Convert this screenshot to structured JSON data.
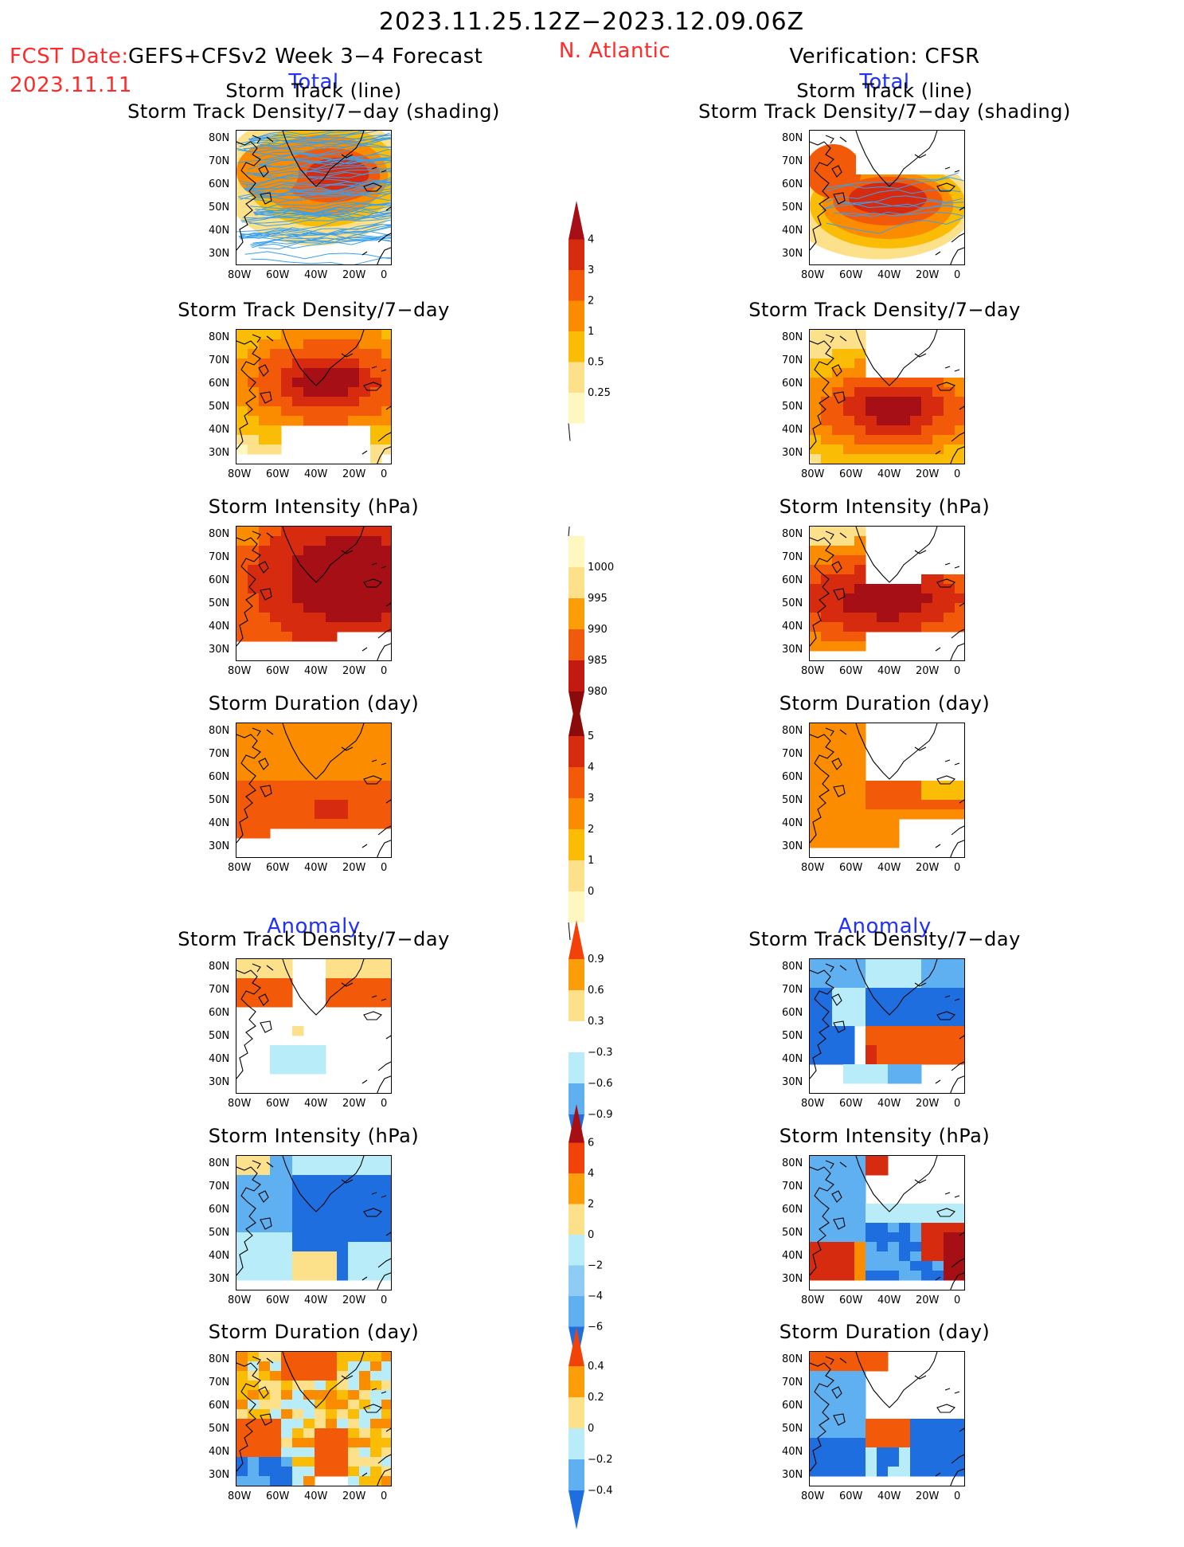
{
  "header": {
    "period": "2023.11.25.12Z−2023.12.09.06Z",
    "fcst_label": "FCST Date:",
    "fcst_date": "2023.11.11",
    "forecast_name": "GEFS+CFSv2 Week 3−4 Forecast",
    "region": "N. Atlantic",
    "verification": "Verification: CFSR",
    "total_left": "Total",
    "total_right": "Total",
    "anomaly_left": "Anomaly",
    "anomaly_right": "Anomaly"
  },
  "panel_titles": {
    "track_line": "Storm Track (line)",
    "track_shading": "Storm Track Density/7−day (shading)",
    "density": "Storm Track Density/7−day",
    "intensity": "Storm Intensity (hPa)",
    "duration": "Storm Duration (day)"
  },
  "axes": {
    "lat_ticks": [
      "80N",
      "70N",
      "60N",
      "50N",
      "40N",
      "30N"
    ],
    "lon_ticks": [
      "80W",
      "60W",
      "40W",
      "20W",
      "0"
    ]
  },
  "colorbars": {
    "density": {
      "labels": [
        "4",
        "3",
        "2",
        "1",
        "0.5",
        "0.25"
      ],
      "colors": [
        "#a50f15",
        "#d62b0f",
        "#f25a0a",
        "#fb8c00",
        "#fbbc05",
        "#fde08a",
        "#fff7c0"
      ]
    },
    "intensity": {
      "labels": [
        "1000",
        "995",
        "990",
        "985",
        "980"
      ],
      "colors": [
        "#fff7c0",
        "#fde08a",
        "#fb9e0a",
        "#f05a0c",
        "#c21a10",
        "#8b0a0a"
      ]
    },
    "duration": {
      "labels": [
        "5",
        "4",
        "3",
        "2",
        "1",
        "0"
      ],
      "colors": [
        "#8b0a0a",
        "#d62b0f",
        "#f25a0a",
        "#fb8c00",
        "#fbbc05",
        "#fde08a",
        "#fff7c0"
      ]
    },
    "density_anom": {
      "labels": [
        "0.9",
        "0.6",
        "0.3",
        "−0.3",
        "−0.6",
        "−0.9"
      ],
      "colors": [
        "#f2420a",
        "#fb9e0a",
        "#fde08a",
        "#ffffff",
        "#b8ecf8",
        "#5fb0f0",
        "#1e6ee0"
      ]
    },
    "intensity_anom": {
      "labels": [
        "6",
        "4",
        "2",
        "0",
        "−2",
        "−4",
        "−6"
      ],
      "colors": [
        "#a50f15",
        "#f2420a",
        "#fb9e0a",
        "#fde08a",
        "#b8ecf8",
        "#8ecbf5",
        "#5fb0f0",
        "#1e6ee0"
      ]
    },
    "duration_anom": {
      "labels": [
        "0.4",
        "0.2",
        "0",
        "−0.2",
        "−0.4"
      ],
      "colors": [
        "#f2420a",
        "#fb9e0a",
        "#fde08a",
        "#b8ecf8",
        "#5fb0f0",
        "#1e6ee0"
      ]
    }
  },
  "palette": {
    "dark_red": "#a50f15",
    "red": "#d62b0f",
    "orange_red": "#f25a0a",
    "orange": "#fb8c00",
    "amber": "#fbbc05",
    "pale_yellow": "#fde08a",
    "cream": "#fff7c0",
    "light_blue": "#b8ecf8",
    "mid_blue": "#5fb0f0",
    "blue": "#1e6ee0",
    "track_line": "#3aa0ee"
  }
}
